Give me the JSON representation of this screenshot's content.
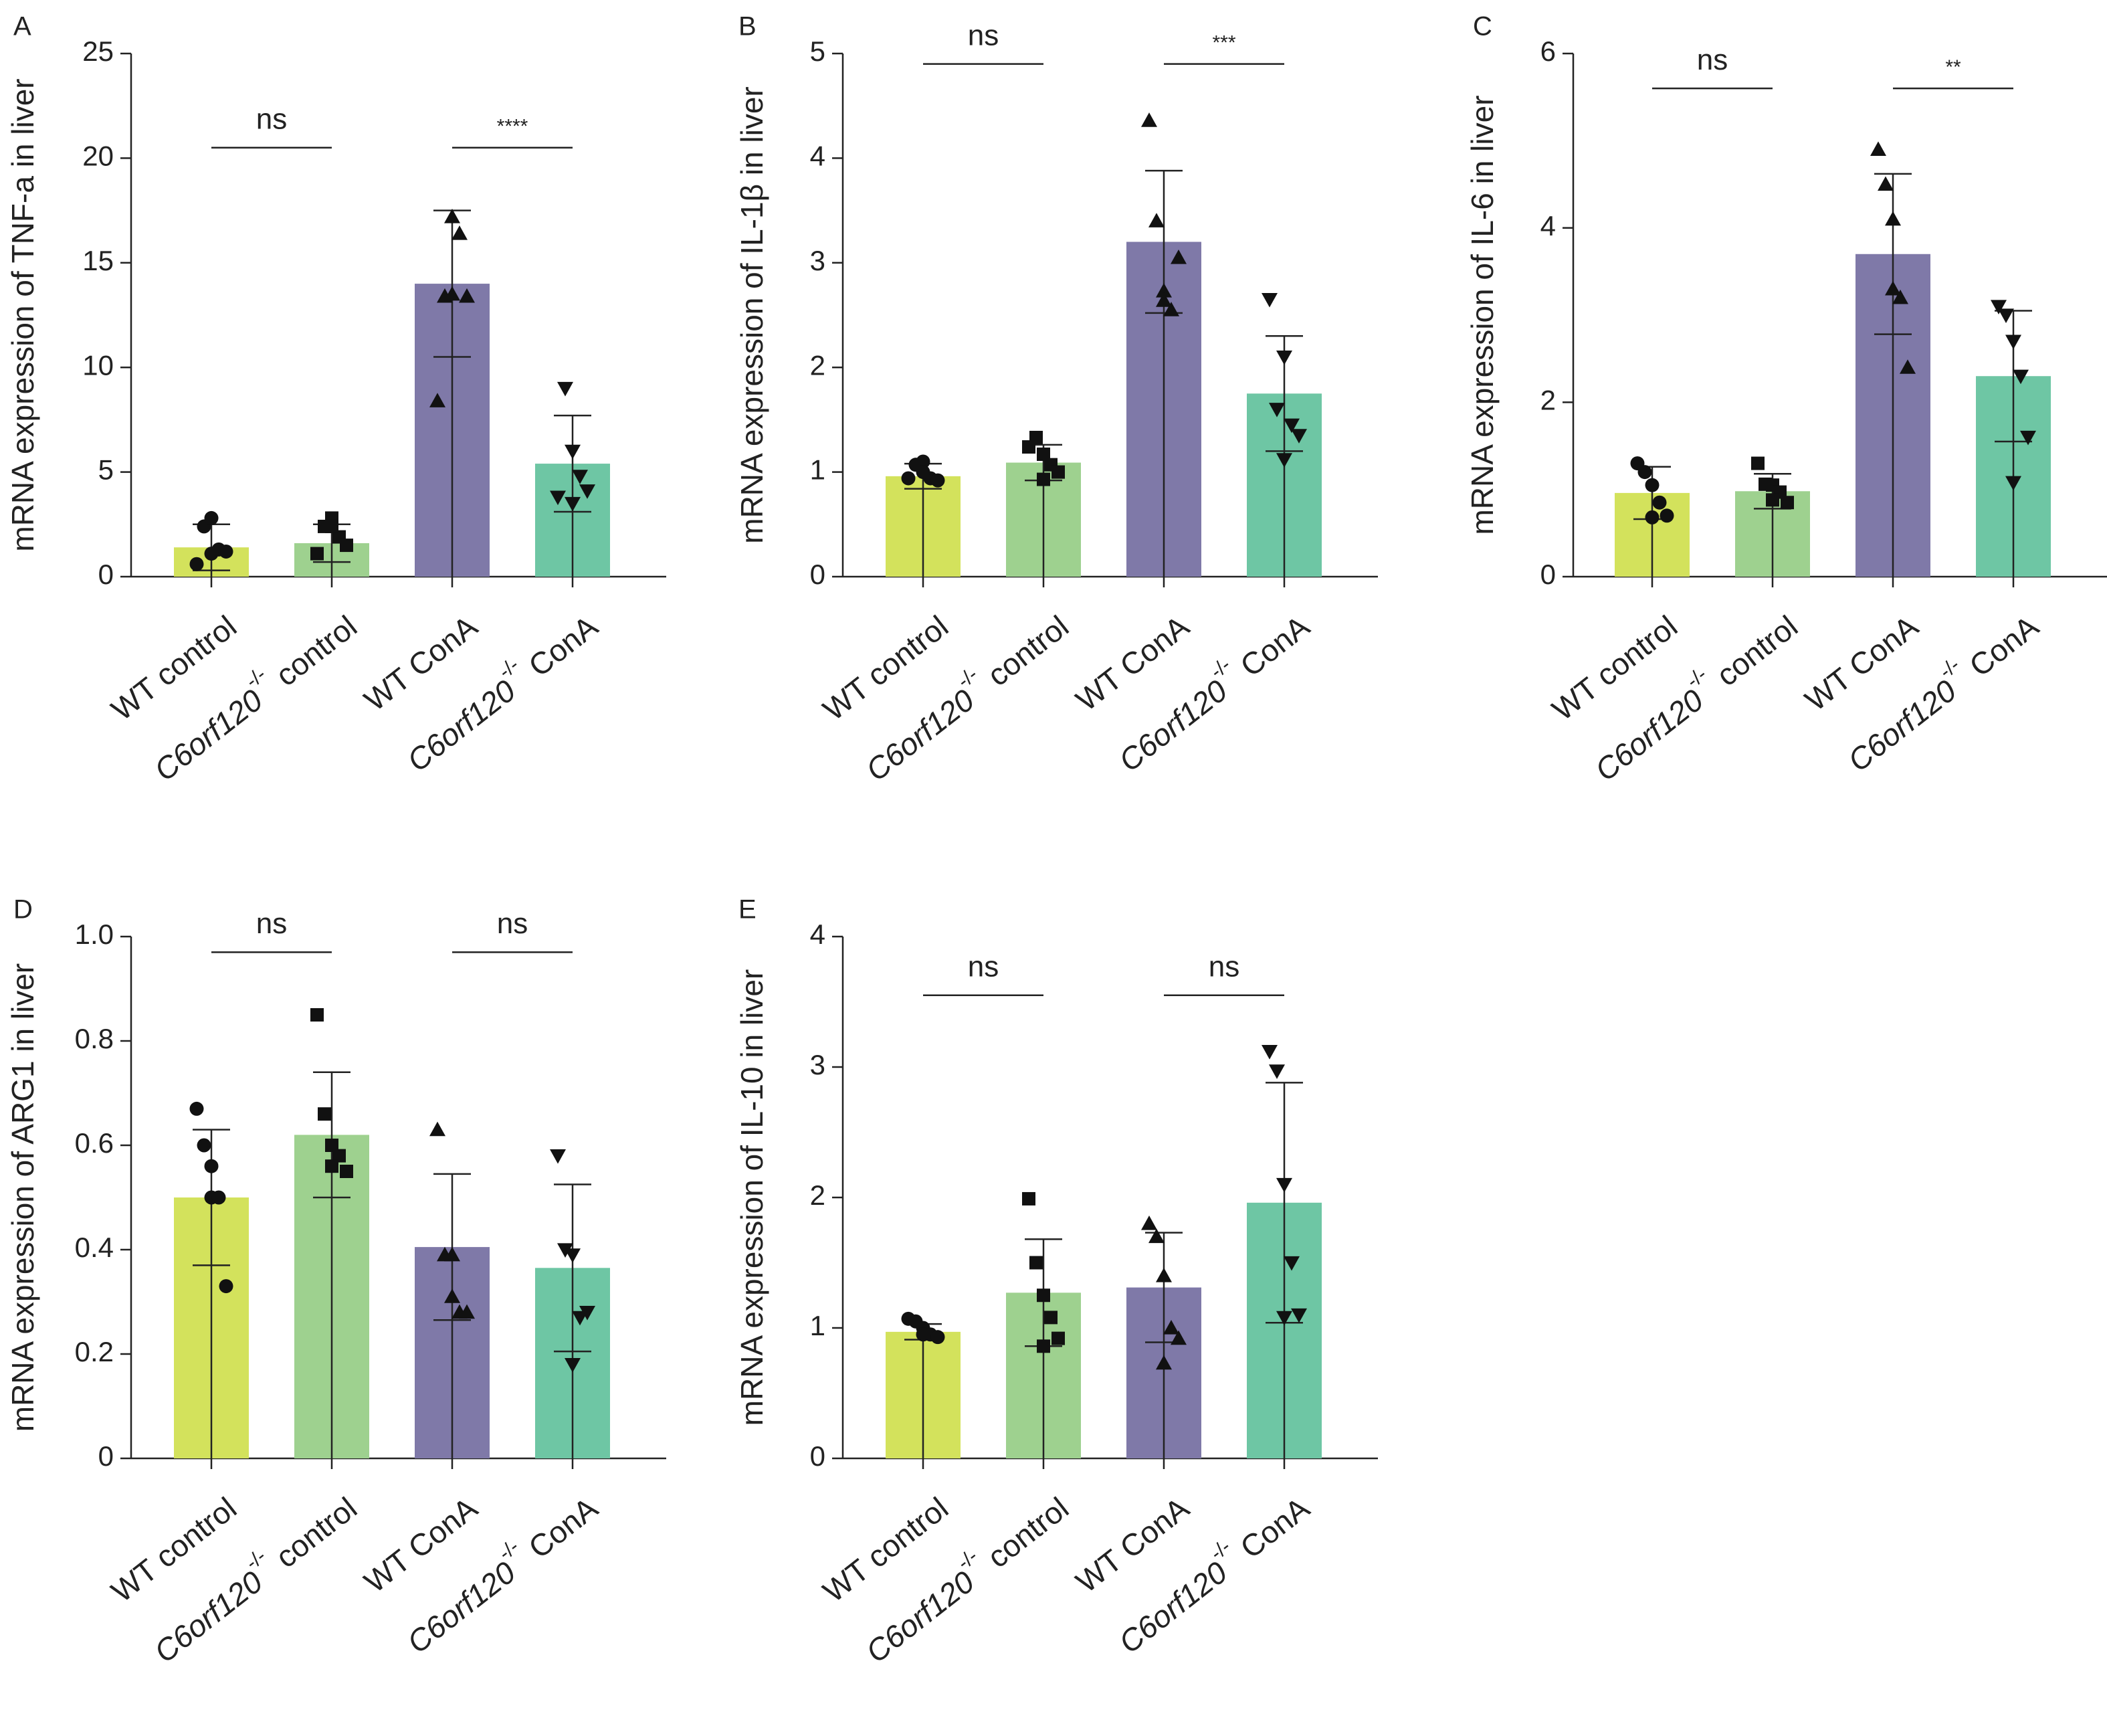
{
  "colors": {
    "WT control": "#d3e25c",
    "C6orf120-/- control": "#9ed18f",
    "WT ConA": "#7f79a8",
    "C6orf120-/- ConA": "#6ec6a4",
    "axis": "#222222"
  },
  "categories": [
    {
      "pre": "WT control",
      "italic": "",
      "sup": "",
      "post": ""
    },
    {
      "pre": "",
      "italic": "C6orf120",
      "sup": "-/-",
      "post": " control"
    },
    {
      "pre": "WT ConA",
      "italic": "",
      "sup": "",
      "post": ""
    },
    {
      "pre": "",
      "italic": "C6orf120",
      "sup": "-/-",
      "post": " ConA"
    }
  ],
  "chart_data": [
    {
      "panel": "A",
      "type": "bar",
      "ylabel": "mRNA expression of TNF-a in liver",
      "ylim": [
        0,
        25
      ],
      "yticks": [
        "0",
        "5",
        "10",
        "15",
        "20",
        "25"
      ],
      "markers": [
        "circle",
        "square",
        "triangle-up",
        "triangle-down"
      ],
      "means": [
        1.4,
        1.6,
        14.0,
        5.4
      ],
      "sd": [
        1.1,
        0.9,
        3.5,
        2.3
      ],
      "points": [
        [
          0.6,
          2.4,
          2.8,
          1.3,
          1.2,
          1.1
        ],
        [
          1.1,
          2.4,
          2.8,
          1.9,
          1.5,
          2.4
        ],
        [
          8.4,
          13.4,
          17.2,
          16.4,
          13.4,
          13.5
        ],
        [
          3.8,
          9.0,
          6.0,
          4.8,
          4.1,
          3.5
        ]
      ],
      "significance": [
        {
          "label": "ns",
          "y": 20.5
        },
        {
          "label": "****",
          "y": 20.5
        }
      ]
    },
    {
      "panel": "B",
      "type": "bar",
      "ylabel": "mRNA expression of IL-1β in liver",
      "ylim": [
        0,
        5
      ],
      "yticks": [
        "0",
        "1",
        "2",
        "3",
        "4",
        "5"
      ],
      "markers": [
        "circle",
        "square",
        "triangle-up",
        "triangle-down"
      ],
      "means": [
        0.96,
        1.09,
        3.2,
        1.75
      ],
      "sd": [
        0.12,
        0.17,
        0.68,
        0.55
      ],
      "points": [
        [
          0.94,
          1.07,
          1.1,
          0.94,
          0.92,
          1.0
        ],
        [
          1.24,
          1.33,
          1.17,
          1.07,
          1.0,
          0.93
        ],
        [
          4.36,
          3.4,
          2.73,
          2.55,
          3.05,
          2.64
        ],
        [
          2.65,
          1.6,
          2.1,
          1.45,
          1.35,
          1.12
        ]
      ],
      "significance": [
        {
          "label": "ns",
          "y": 4.9
        },
        {
          "label": "***",
          "y": 4.9
        }
      ]
    },
    {
      "panel": "C",
      "type": "bar",
      "ylabel": "mRNA expression of IL-6 in liver",
      "ylim": [
        0,
        6
      ],
      "yticks": [
        "0",
        "2",
        "4",
        "6"
      ],
      "markers": [
        "circle",
        "square",
        "triangle-up",
        "triangle-down"
      ],
      "means": [
        0.96,
        0.98,
        3.7,
        2.3
      ],
      "sd": [
        0.3,
        0.2,
        0.92,
        0.75
      ],
      "points": [
        [
          1.3,
          1.2,
          1.05,
          0.85,
          0.7,
          0.68
        ],
        [
          1.3,
          1.06,
          1.05,
          0.97,
          0.85,
          0.88
        ],
        [
          4.9,
          4.5,
          3.3,
          3.2,
          2.4,
          4.1
        ],
        [
          3.1,
          3.0,
          2.7,
          2.3,
          1.6,
          1.08
        ]
      ],
      "significance": [
        {
          "label": "ns",
          "y": 5.6
        },
        {
          "label": "**",
          "y": 5.6
        }
      ]
    },
    {
      "panel": "D",
      "type": "bar",
      "ylabel": "mRNA expression of ARG1 in liver",
      "ylim": [
        0,
        1.0
      ],
      "yticks": [
        "0",
        "0.2",
        "0.4",
        "0.6",
        "0.8",
        "1.0"
      ],
      "markers": [
        "circle",
        "square",
        "triangle-up",
        "triangle-down"
      ],
      "means": [
        0.5,
        0.62,
        0.405,
        0.365
      ],
      "sd": [
        0.13,
        0.12,
        0.14,
        0.16
      ],
      "points": [
        [
          0.67,
          0.6,
          0.5,
          0.5,
          0.33,
          0.56
        ],
        [
          0.85,
          0.66,
          0.6,
          0.58,
          0.55,
          0.56
        ],
        [
          0.63,
          0.39,
          0.39,
          0.28,
          0.28,
          0.31
        ],
        [
          0.58,
          0.4,
          0.39,
          0.27,
          0.28,
          0.18
        ]
      ],
      "significance": [
        {
          "label": "ns",
          "y": 0.97
        },
        {
          "label": "ns",
          "y": 0.97
        }
      ]
    },
    {
      "panel": "E",
      "type": "bar",
      "ylabel": "mRNA expression of IL-10 in liver",
      "ylim": [
        0,
        4
      ],
      "yticks": [
        "0",
        "1",
        "2",
        "3",
        "4"
      ],
      "markers": [
        "circle",
        "square",
        "triangle-up",
        "triangle-down"
      ],
      "means": [
        0.97,
        1.27,
        1.31,
        1.96
      ],
      "sd": [
        0.06,
        0.41,
        0.42,
        0.92
      ],
      "points": [
        [
          1.07,
          1.05,
          1.0,
          0.95,
          0.93,
          0.95
        ],
        [
          1.99,
          1.5,
          1.25,
          1.08,
          0.92,
          0.86
        ],
        [
          1.8,
          1.7,
          1.4,
          1.0,
          0.92,
          0.73
        ],
        [
          3.12,
          2.97,
          2.1,
          1.5,
          1.1,
          1.08
        ]
      ],
      "significance": [
        {
          "label": "ns",
          "y": 3.55
        },
        {
          "label": "ns",
          "y": 3.55
        }
      ]
    }
  ]
}
